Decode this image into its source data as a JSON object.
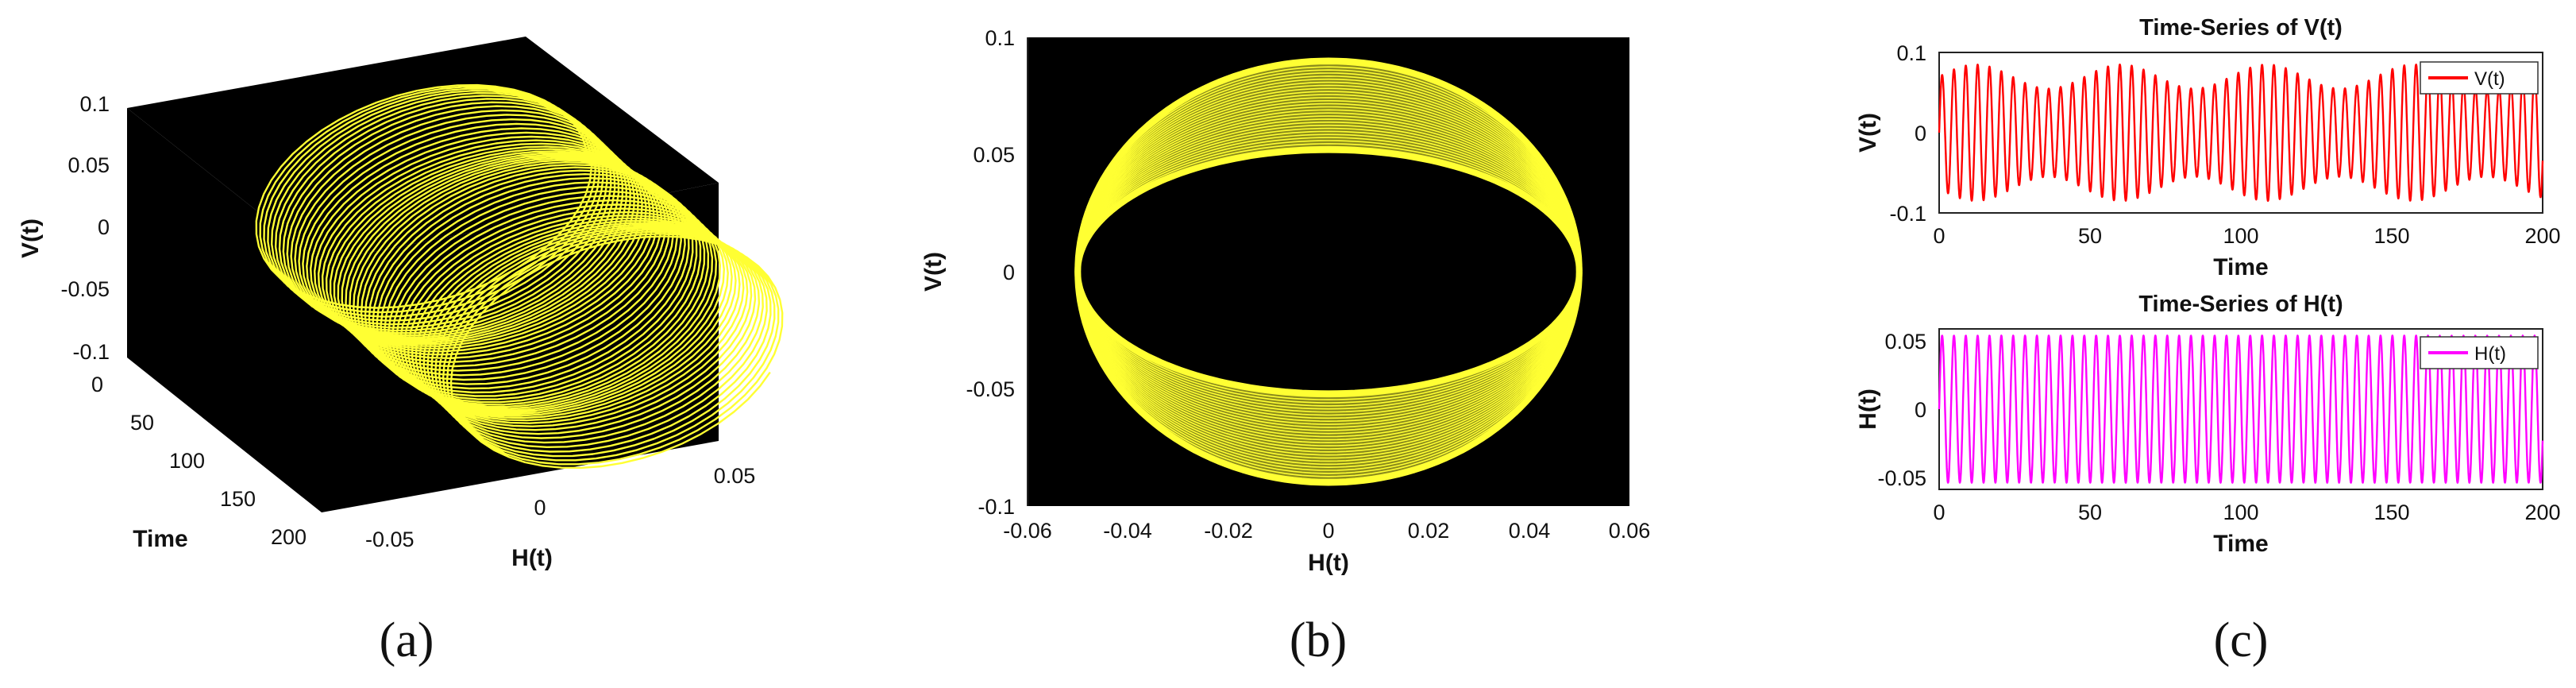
{
  "chart_data": [
    {
      "panel_label": "(a)",
      "type": "line",
      "projection": "3d",
      "background": "#000000",
      "line_color": "#ffff33",
      "xlabel": "H(t)",
      "ylabel": "Time",
      "zlabel": "V(t)",
      "xticks": [
        "-0.05",
        "0",
        "0.05"
      ],
      "yticks": [
        "0",
        "50",
        "100",
        "150",
        "200"
      ],
      "zticks": [
        "0.1",
        "0.05",
        "0",
        "-0.05",
        "-0.1"
      ],
      "xlim": [
        -0.06,
        0.06
      ],
      "ylim": [
        0,
        200
      ],
      "zlim": [
        -0.1,
        0.1
      ],
      "series": [
        {
          "equation": {
            "t": [
              0,
              200
            ],
            "H": "0.05*cos(1.6*t)",
            "V": "0.09*sin(1.6*t)"
          }
        }
      ]
    },
    {
      "panel_label": "(b)",
      "type": "line",
      "background": "#000000",
      "line_color": "#ffff33",
      "xlabel": "H(t)",
      "ylabel": "V(t)",
      "xlim": [
        -0.06,
        0.06
      ],
      "ylim": [
        -0.1,
        0.1
      ],
      "xticks": [
        "-0.06",
        "-0.04",
        "-0.02",
        "0",
        "0.02",
        "0.04",
        "0.06"
      ],
      "yticks": [
        "0.1",
        "0.05",
        "0",
        "-0.05",
        "-0.1"
      ],
      "series": [
        {
          "equation": {
            "H": "0.05*cos(s)",
            "V": "a*sin(s)",
            "a_range": [
              0.052,
              0.09
            ]
          }
        }
      ]
    },
    {
      "panel_label": "(c)",
      "type": "line",
      "title": "Time-Series of  V(t)",
      "xlabel": "Time",
      "ylabel": "V(t)",
      "xlim": [
        0,
        200
      ],
      "ylim": [
        -0.1,
        0.1
      ],
      "xticks": [
        "0",
        "50",
        "100",
        "150",
        "200"
      ],
      "yticks": [
        "0.1",
        "0",
        "-0.1"
      ],
      "legend": "top-right",
      "series": [
        {
          "name": "V(t)",
          "color": "#ff0000",
          "equation": {
            "t": [
              0,
              200
            ],
            "V": "(0.07 + 0.015*sin(0.13*t))*sin(1.6*t)"
          }
        }
      ]
    },
    {
      "panel_label": "(c)",
      "type": "line",
      "title": "Time-Series of H(t)",
      "xlabel": "Time",
      "ylabel": "H(t)",
      "xlim": [
        0,
        200
      ],
      "ylim": [
        -0.06,
        0.06
      ],
      "xticks": [
        "0",
        "50",
        "100",
        "150",
        "200"
      ],
      "yticks": [
        "0.05",
        "0",
        "-0.05"
      ],
      "legend": "top-right",
      "series": [
        {
          "name": "H(t)",
          "color": "#ff00ff",
          "equation": {
            "t": [
              0,
              200
            ],
            "H": "0.055*sin(1.6*t)"
          }
        }
      ]
    }
  ]
}
